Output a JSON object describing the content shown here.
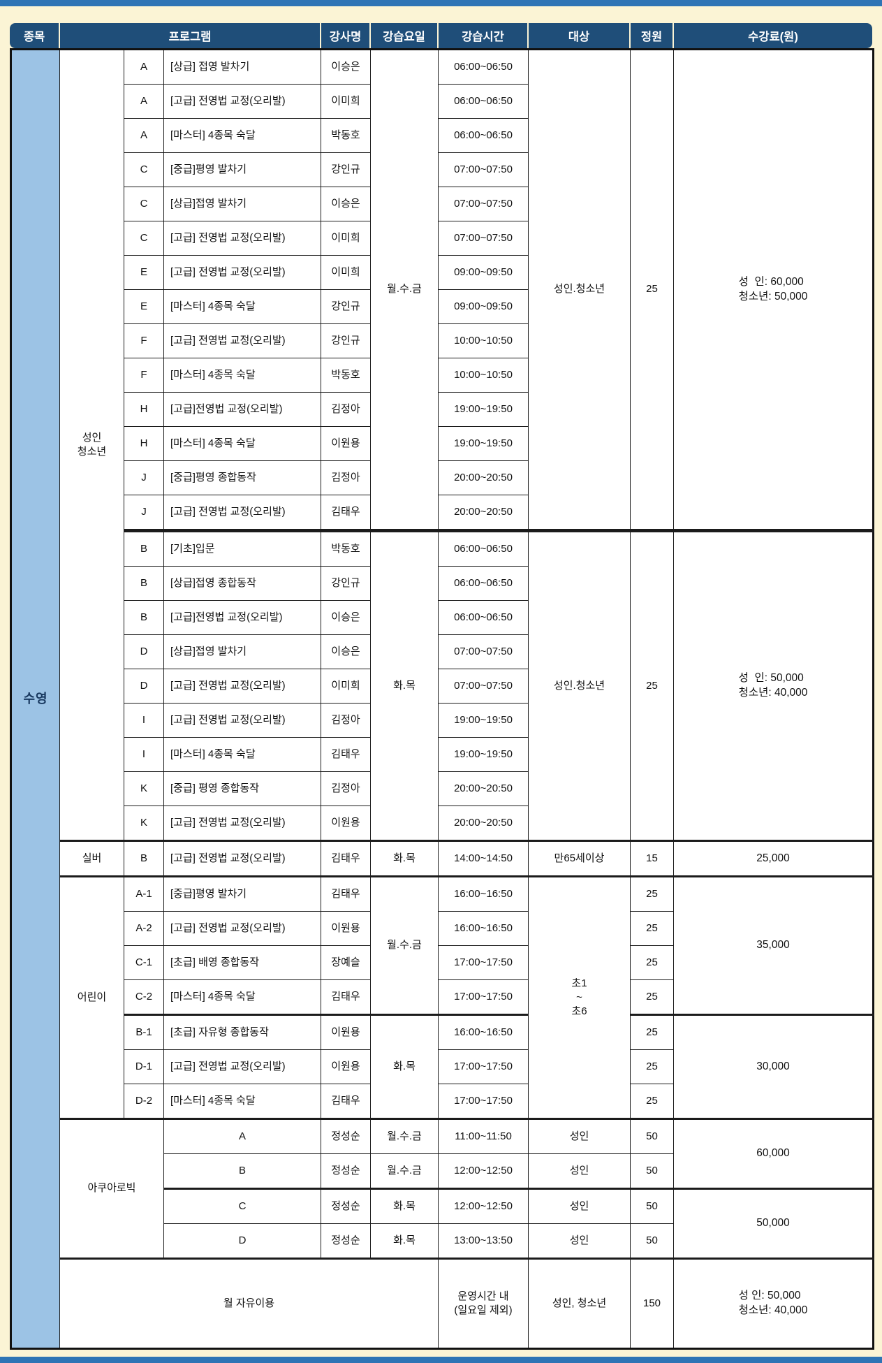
{
  "page": {
    "bg_color": "#FBF4D5",
    "strip_color": "#2E74B5",
    "header_bg": "#1F4E79",
    "header_text_color": "#FFFFFF",
    "species_bg": "#9CC3E5",
    "border_color": "#1b1b1b"
  },
  "table": {
    "columns": [
      {
        "label": "종목",
        "span": 1
      },
      {
        "label": "프로그램",
        "span": 3
      },
      {
        "label": "강사명",
        "span": 1
      },
      {
        "label": "강습요일",
        "span": 1
      },
      {
        "label": "강습시간",
        "span": 1
      },
      {
        "label": "대상",
        "span": 1
      },
      {
        "label": "정원",
        "span": 1
      },
      {
        "label": "수강료(원)",
        "span": 1
      }
    ],
    "rows": [
      [
        [
          "species",
          "수영",
          36
        ],
        [
          "group",
          "성인\n청소년",
          23
        ],
        [
          "class",
          "A"
        ],
        [
          "program",
          "[상급] 접영 발차기"
        ],
        [
          "instructor",
          "이승은"
        ],
        [
          "days",
          "월.수.금",
          14
        ],
        [
          "time",
          "06:00~06:50"
        ],
        [
          "target",
          "성인.청소년",
          14
        ],
        [
          "capacity",
          "25",
          14
        ],
        [
          "fee",
          "성  인: 60,000\n청소년: 50,000",
          14
        ]
      ],
      [
        [
          "class",
          "A"
        ],
        [
          "program",
          "[고급] 전영법 교정(오리발)"
        ],
        [
          "instructor",
          "이미희"
        ],
        [
          "time",
          "06:00~06:50"
        ]
      ],
      [
        [
          "class",
          "A"
        ],
        [
          "program",
          "[마스터] 4종목 숙달"
        ],
        [
          "instructor",
          "박동호"
        ],
        [
          "time",
          "06:00~06:50"
        ]
      ],
      [
        [
          "class",
          "C"
        ],
        [
          "program",
          "[중급]평영 발차기"
        ],
        [
          "instructor",
          "강인규"
        ],
        [
          "time",
          "07:00~07:50"
        ]
      ],
      [
        [
          "class",
          "C"
        ],
        [
          "program",
          "[상급]접영 발차기"
        ],
        [
          "instructor",
          "이승은"
        ],
        [
          "time",
          "07:00~07:50"
        ]
      ],
      [
        [
          "class",
          "C"
        ],
        [
          "program",
          "[고급] 전영법 교정(오리발)"
        ],
        [
          "instructor",
          "이미희"
        ],
        [
          "time",
          "07:00~07:50"
        ]
      ],
      [
        [
          "class",
          "E"
        ],
        [
          "program",
          "[고급] 전영법 교정(오리발)"
        ],
        [
          "instructor",
          "이미희"
        ],
        [
          "time",
          "09:00~09:50"
        ]
      ],
      [
        [
          "class",
          "E"
        ],
        [
          "program",
          "[마스터] 4종목 숙달"
        ],
        [
          "instructor",
          "강인규"
        ],
        [
          "time",
          "09:00~09:50"
        ]
      ],
      [
        [
          "class",
          "F"
        ],
        [
          "program",
          "[고급] 전영법 교정(오리발)"
        ],
        [
          "instructor",
          "강인규"
        ],
        [
          "time",
          "10:00~10:50"
        ]
      ],
      [
        [
          "class",
          "F"
        ],
        [
          "program",
          "[마스터] 4종목 숙달"
        ],
        [
          "instructor",
          "박동호"
        ],
        [
          "time",
          "10:00~10:50"
        ]
      ],
      [
        [
          "class",
          "H"
        ],
        [
          "program",
          "[고급]전영법 교정(오리발)"
        ],
        [
          "instructor",
          "김정아"
        ],
        [
          "time",
          "19:00~19:50"
        ]
      ],
      [
        [
          "class",
          "H"
        ],
        [
          "program",
          "[마스터] 4종목 숙달"
        ],
        [
          "instructor",
          "이원용"
        ],
        [
          "time",
          "19:00~19:50"
        ]
      ],
      [
        [
          "class",
          "J"
        ],
        [
          "program",
          "[중급]평영 종합동작"
        ],
        [
          "instructor",
          "김정아"
        ],
        [
          "time",
          "20:00~20:50"
        ]
      ],
      [
        [
          "class",
          "J"
        ],
        [
          "program",
          "[고급] 전영법 교정(오리발)"
        ],
        [
          "instructor",
          "김태우"
        ],
        [
          "time",
          "20:00~20:50"
        ]
      ],
      [
        [
          "class",
          "B"
        ],
        [
          "program",
          "[기초]입문"
        ],
        [
          "instructor",
          "박동호"
        ],
        [
          "days",
          "화.목",
          9
        ],
        [
          "time",
          "06:00~06:50"
        ],
        [
          "target",
          "성인.청소년",
          9
        ],
        [
          "capacity",
          "25",
          9
        ],
        [
          "fee",
          "성  인: 50,000\n청소년: 40,000",
          9
        ]
      ],
      [
        [
          "class",
          "B"
        ],
        [
          "program",
          "[상급]접영 종합동작"
        ],
        [
          "instructor",
          "강인규"
        ],
        [
          "time",
          "06:00~06:50"
        ]
      ],
      [
        [
          "class",
          "B"
        ],
        [
          "program",
          "[고급]전영법 교정(오리발)"
        ],
        [
          "instructor",
          "이승은"
        ],
        [
          "time",
          "06:00~06:50"
        ]
      ],
      [
        [
          "class",
          "D"
        ],
        [
          "program",
          "[상급]접영 발차기"
        ],
        [
          "instructor",
          "이승은"
        ],
        [
          "time",
          "07:00~07:50"
        ]
      ],
      [
        [
          "class",
          "D"
        ],
        [
          "program",
          "[고급] 전영법 교정(오리발)"
        ],
        [
          "instructor",
          "이미희"
        ],
        [
          "time",
          "07:00~07:50"
        ]
      ],
      [
        [
          "class",
          "I"
        ],
        [
          "program",
          "[고급] 전영법 교정(오리발)"
        ],
        [
          "instructor",
          "김정아"
        ],
        [
          "time",
          "19:00~19:50"
        ]
      ],
      [
        [
          "class",
          "I"
        ],
        [
          "program",
          "[마스터] 4종목 숙달"
        ],
        [
          "instructor",
          "김태우"
        ],
        [
          "time",
          "19:00~19:50"
        ]
      ],
      [
        [
          "class",
          "K"
        ],
        [
          "program",
          "[중급] 평영 종합동작"
        ],
        [
          "instructor",
          "김정아"
        ],
        [
          "time",
          "20:00~20:50"
        ]
      ],
      [
        [
          "class",
          "K"
        ],
        [
          "program",
          "[고급] 전영법 교정(오리발)"
        ],
        [
          "instructor",
          "이원용"
        ],
        [
          "time",
          "20:00~20:50"
        ]
      ],
      [
        [
          "group",
          "실버"
        ],
        [
          "class",
          "B"
        ],
        [
          "program",
          "[고급] 전영법 교정(오리발)"
        ],
        [
          "instructor",
          "김태우"
        ],
        [
          "days",
          "화.목"
        ],
        [
          "time",
          "14:00~14:50"
        ],
        [
          "target",
          "만65세이상"
        ],
        [
          "capacity",
          "15"
        ],
        [
          "fee",
          "25,000"
        ]
      ],
      [
        [
          "group",
          "어린이",
          7
        ],
        [
          "class",
          "A-1"
        ],
        [
          "program",
          "[중급]평영 발차기"
        ],
        [
          "instructor",
          "김태우"
        ],
        [
          "days",
          "월.수.금",
          4
        ],
        [
          "time",
          "16:00~16:50"
        ],
        [
          "target",
          "초1\n~\n초6",
          7
        ],
        [
          "capacity",
          "25"
        ],
        [
          "fee",
          "35,000",
          4
        ]
      ],
      [
        [
          "class",
          "A-2"
        ],
        [
          "program",
          "[고급] 전영법 교정(오리발)"
        ],
        [
          "instructor",
          "이원용"
        ],
        [
          "time",
          "16:00~16:50"
        ],
        [
          "capacity",
          "25"
        ]
      ],
      [
        [
          "class",
          "C-1"
        ],
        [
          "program",
          "[초급] 배영 종합동작"
        ],
        [
          "instructor",
          "장예슬"
        ],
        [
          "time",
          "17:00~17:50"
        ],
        [
          "capacity",
          "25"
        ]
      ],
      [
        [
          "class",
          "C-2"
        ],
        [
          "program",
          "[마스터] 4종목 숙달"
        ],
        [
          "instructor",
          "김태우"
        ],
        [
          "time",
          "17:00~17:50"
        ],
        [
          "capacity",
          "25"
        ]
      ],
      [
        [
          "class",
          "B-1"
        ],
        [
          "program",
          "[초급] 자유형 종합동작"
        ],
        [
          "instructor",
          "이원용"
        ],
        [
          "days",
          "화.목",
          3
        ],
        [
          "time",
          "16:00~16:50"
        ],
        [
          "capacity",
          "25"
        ],
        [
          "fee",
          "30,000",
          3
        ]
      ],
      [
        [
          "class",
          "D-1"
        ],
        [
          "program",
          "[고급] 전영법 교정(오리발)"
        ],
        [
          "instructor",
          "이원용"
        ],
        [
          "time",
          "17:00~17:50"
        ],
        [
          "capacity",
          "25"
        ]
      ],
      [
        [
          "class",
          "D-2"
        ],
        [
          "program",
          "[마스터] 4종목 숙달"
        ],
        [
          "instructor",
          "김태우"
        ],
        [
          "time",
          "17:00~17:50"
        ],
        [
          "capacity",
          "25"
        ]
      ],
      [
        [
          "group",
          "아쿠아로빅",
          4,
          2
        ],
        [
          "class",
          "A"
        ],
        [
          "instructor",
          "정성순"
        ],
        [
          "days",
          "월.수.금"
        ],
        [
          "time",
          "11:00~11:50"
        ],
        [
          "target",
          "성인"
        ],
        [
          "capacity",
          "50"
        ],
        [
          "fee",
          "60,000",
          2
        ]
      ],
      [
        [
          "class",
          "B"
        ],
        [
          "instructor",
          "정성순"
        ],
        [
          "days",
          "월.수.금"
        ],
        [
          "time",
          "12:00~12:50"
        ],
        [
          "target",
          "성인"
        ],
        [
          "capacity",
          "50"
        ]
      ],
      [
        [
          "class",
          "C"
        ],
        [
          "instructor",
          "정성순"
        ],
        [
          "days",
          "화.목"
        ],
        [
          "time",
          "12:00~12:50"
        ],
        [
          "target",
          "성인"
        ],
        [
          "capacity",
          "50"
        ],
        [
          "fee",
          "50,000",
          2
        ]
      ],
      [
        [
          "class",
          "D"
        ],
        [
          "instructor",
          "정성순"
        ],
        [
          "days",
          "화.목"
        ],
        [
          "time",
          "13:00~13:50"
        ],
        [
          "target",
          "성인"
        ],
        [
          "capacity",
          "50"
        ]
      ],
      [
        [
          "freeuse",
          "월 자유이용",
          1,
          5
        ],
        [
          "time",
          "운영시간 내\n(일요일 제외)"
        ],
        [
          "target",
          "성인, 청소년"
        ],
        [
          "capacity",
          "150"
        ],
        [
          "fee",
          "성 인: 50,000\n청소년: 40,000"
        ]
      ]
    ],
    "thick_after": [
      13
    ],
    "medium_after": [
      22,
      23,
      27,
      30,
      32,
      34
    ]
  }
}
